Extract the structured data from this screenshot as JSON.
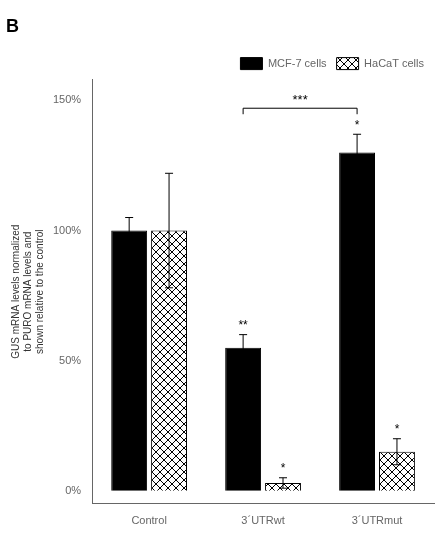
{
  "chart_data": {
    "type": "bar",
    "title": "B",
    "categories": [
      "Control",
      "3´UTRwt",
      "3´UTRmut"
    ],
    "series": [
      {
        "name": "MCF-7 cells",
        "color": "#000000",
        "values": [
          100,
          55,
          130
        ],
        "errors": [
          5,
          5,
          7
        ],
        "sig_labels": [
          null,
          "**",
          "*"
        ]
      },
      {
        "name": "HaCaT cells",
        "color": "#ffffff",
        "values": [
          100,
          3,
          15
        ],
        "errors": [
          22,
          2,
          5
        ],
        "sig_labels": [
          null,
          "*",
          "*"
        ]
      }
    ],
    "y_label": "GUS mRNA levels normalized\nto PURO mRNA levels and\nshown relative to the control",
    "ylim": [
      -5,
      158
    ],
    "yticks": [
      {
        "value": 0,
        "label": "0%"
      },
      {
        "value": 50,
        "label": "50%"
      },
      {
        "value": 100,
        "label": "100%"
      },
      {
        "value": 150,
        "label": "150%"
      }
    ],
    "grid": false,
    "legend": "upper right",
    "annotations": [
      {
        "text": "***",
        "series": "MCF-7 cells",
        "from": "3´UTRwt",
        "to": "3´UTRmut",
        "y": 147
      }
    ]
  }
}
